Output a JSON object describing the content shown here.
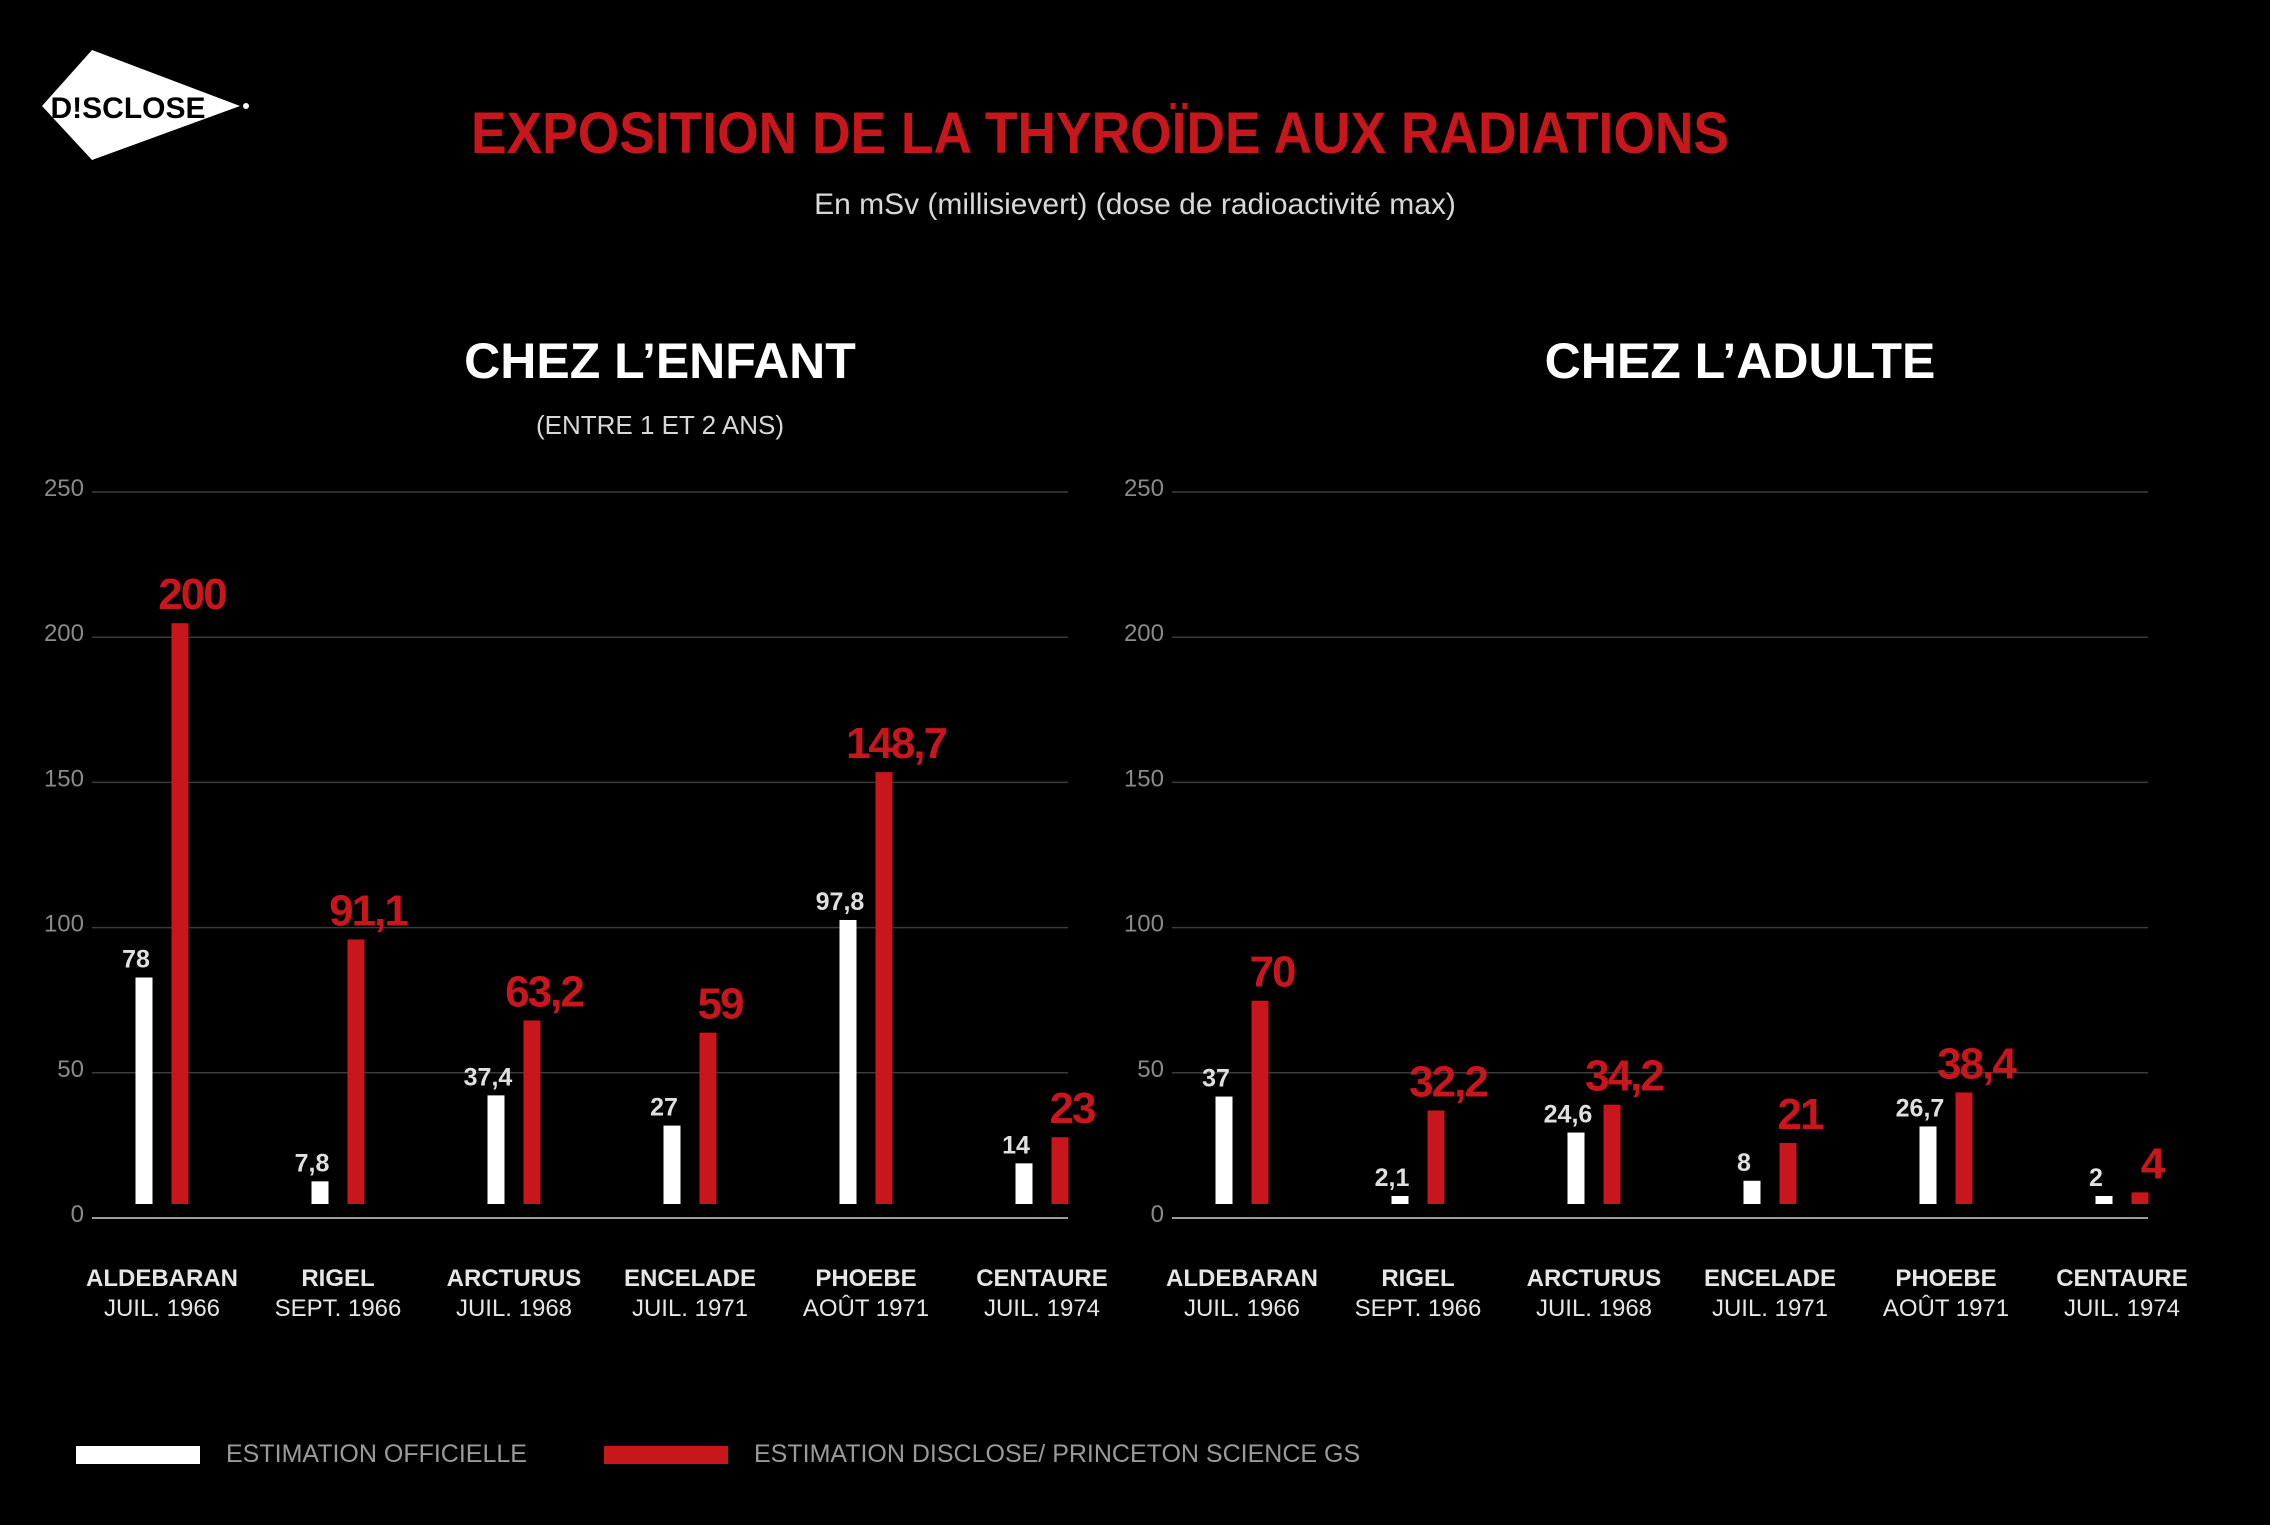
{
  "logo": {
    "text": "D!SCLOSE"
  },
  "title": "EXPOSITION DE LA THYROÏDE AUX RADIATIONS",
  "subtitle": "En mSv (millisievert) (dose de radioactivité max)",
  "colors": {
    "official": "#ffffff",
    "disclose": "#c8161d",
    "grid": "#3a3a3a"
  },
  "legend": {
    "official": "ESTIMATION OFFICIELLE",
    "disclose": "ESTIMATION DISCLOSE/ PRINCETON SCIENCE GS"
  },
  "chart_data": [
    {
      "type": "bar",
      "title": "CHEZ L’ENFANT",
      "subtitle": "(ENTRE 1 ET 2 ANS)",
      "categories": [
        {
          "name": "ALDEBARAN",
          "date": "JUIL. 1966"
        },
        {
          "name": "RIGEL",
          "date": "SEPT. 1966"
        },
        {
          "name": "ARCTURUS",
          "date": "JUIL. 1968"
        },
        {
          "name": "ENCELADE",
          "date": "JUIL. 1971"
        },
        {
          "name": "PHOEBE",
          "date": "AOÛT 1971"
        },
        {
          "name": "CENTAURE",
          "date": "JUIL. 1974"
        }
      ],
      "series": [
        {
          "name": "ESTIMATION OFFICIELLE",
          "values": [
            78,
            7.8,
            37.4,
            27,
            97.8,
            14
          ],
          "labels": [
            "78",
            "7,8",
            "37,4",
            "27",
            "97,8",
            "14"
          ]
        },
        {
          "name": "ESTIMATION DISCLOSE/ PRINCETON SCIENCE GS",
          "values": [
            200,
            91.1,
            63.2,
            59,
            148.7,
            23
          ],
          "labels": [
            "200",
            "91,1",
            "63,2",
            "59",
            "148,7",
            "23"
          ]
        }
      ],
      "yticks": [
        0,
        50,
        100,
        150,
        200,
        250
      ],
      "ylim": [
        0,
        250
      ],
      "grid": true
    },
    {
      "type": "bar",
      "title": "CHEZ L’ADULTE",
      "subtitle": "",
      "categories": [
        {
          "name": "ALDEBARAN",
          "date": "JUIL. 1966"
        },
        {
          "name": "RIGEL",
          "date": "SEPT. 1966"
        },
        {
          "name": "ARCTURUS",
          "date": "JUIL. 1968"
        },
        {
          "name": "ENCELADE",
          "date": "JUIL. 1971"
        },
        {
          "name": "PHOEBE",
          "date": "AOÛT 1971"
        },
        {
          "name": "CENTAURE",
          "date": "JUIL. 1974"
        }
      ],
      "series": [
        {
          "name": "ESTIMATION OFFICIELLE",
          "values": [
            37,
            2.1,
            24.6,
            8,
            26.7,
            2
          ],
          "labels": [
            "37",
            "2,1",
            "24,6",
            "8",
            "26,7",
            "2"
          ]
        },
        {
          "name": "ESTIMATION DISCLOSE/ PRINCETON SCIENCE GS",
          "values": [
            70,
            32.2,
            34.2,
            21,
            38.4,
            4
          ],
          "labels": [
            "70",
            "32,2",
            "34,2",
            "21",
            "38,4",
            "4"
          ]
        }
      ],
      "yticks": [
        0,
        50,
        100,
        150,
        200,
        250
      ],
      "ylim": [
        0,
        250
      ],
      "grid": true
    }
  ]
}
